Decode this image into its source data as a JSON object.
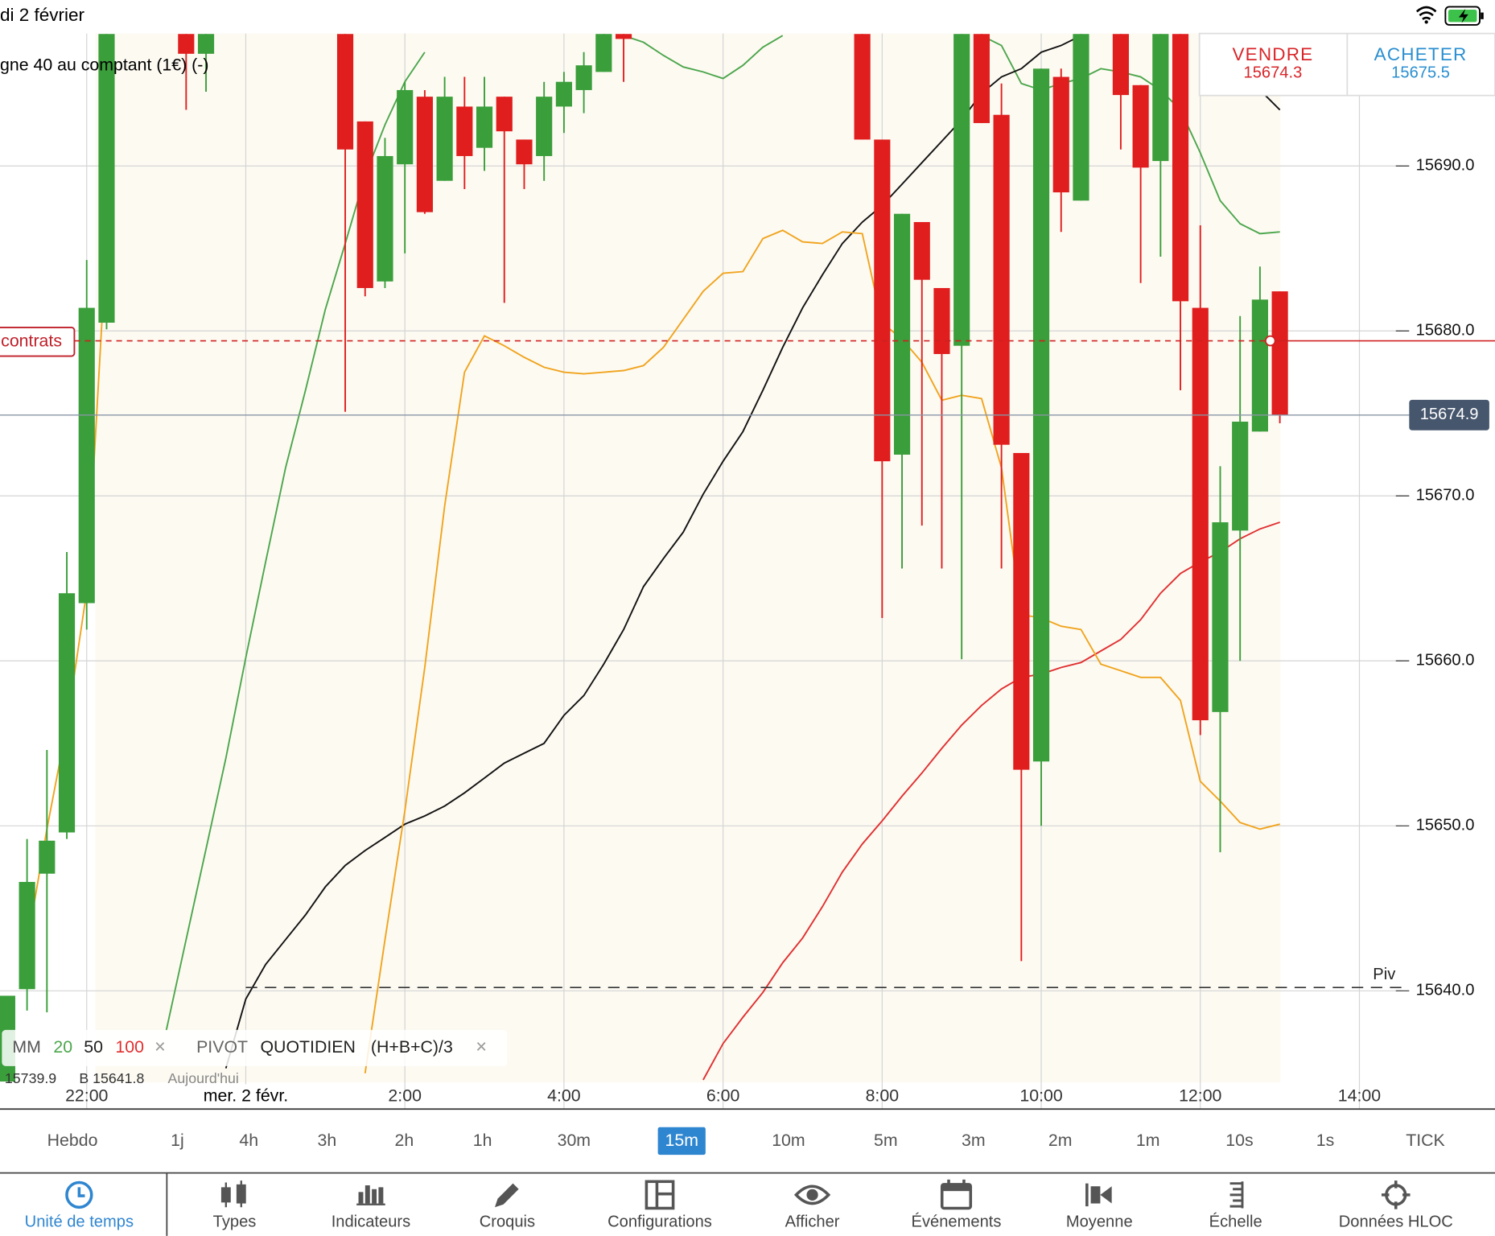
{
  "status_bar": {
    "date": "di 2 février"
  },
  "instrument": "gne 40 au comptant (1€) (-)",
  "quotes": {
    "sell_label": "VENDRE",
    "sell": "15674.3",
    "buy_label": "ACHETER",
    "buy": "15675.5"
  },
  "chart_data": {
    "type": "candlestick",
    "up_color": "#3a9e3a",
    "down_color": "#e01e1e",
    "x": [
      21.0,
      21.25,
      21.5,
      21.75,
      22.0,
      22.25,
      23.25,
      23.5,
      25.25,
      25.5,
      25.75,
      26.0,
      26.25,
      26.5,
      26.75,
      27.0,
      27.25,
      27.5,
      27.75,
      28.0,
      28.25,
      28.5,
      28.75,
      31.75,
      32.0,
      32.25,
      32.5,
      32.75,
      33.0,
      33.25,
      33.5,
      33.75,
      34.0,
      34.25,
      34.5,
      35.0,
      35.25,
      35.5,
      35.75,
      36.0,
      36.25,
      36.5,
      36.75,
      37.0
    ],
    "open": [
      15634.5,
      15640.1,
      15647.1,
      15649.6,
      15663.5,
      15680.5,
      15698.0,
      15696.8,
      15698.0,
      15692.7,
      15683.0,
      15690.1,
      15694.2,
      15689.1,
      15693.6,
      15691.1,
      15694.2,
      15691.6,
      15690.6,
      15693.6,
      15694.6,
      15695.7,
      15698.0,
      15698.0,
      15691.6,
      15672.5,
      15686.6,
      15682.6,
      15679.1,
      15698.0,
      15693.1,
      15672.6,
      15653.9,
      15695.4,
      15687.9,
      15698.0,
      15694.9,
      15690.3,
      15698.0,
      15681.4,
      15656.9,
      15667.9,
      15673.9,
      15682.4
    ],
    "high": [
      15639.7,
      15649.2,
      15654.6,
      15666.6,
      15684.3,
      15698.0,
      15698.0,
      15698.0,
      15698.0,
      15692.7,
      15691.7,
      15695.1,
      15694.6,
      15695.4,
      15695.4,
      15695.4,
      15694.2,
      15691.6,
      15695.1,
      15695.7,
      15696.9,
      15698.0,
      15698.0,
      15698.0,
      15691.6,
      15687.1,
      15686.6,
      15682.6,
      15698.0,
      15698.0,
      15695.0,
      15672.6,
      15695.9,
      15695.9,
      15698.0,
      15698.0,
      15694.9,
      15698.0,
      15698.0,
      15686.4,
      15671.8,
      15680.9,
      15683.9,
      15682.4
    ],
    "low": [
      15634.5,
      15638.8,
      15638.7,
      15649.2,
      15661.9,
      15680.1,
      15693.4,
      15694.5,
      15675.1,
      15682.1,
      15682.6,
      15684.7,
      15687.1,
      15689.1,
      15688.6,
      15689.7,
      15681.7,
      15688.6,
      15689.1,
      15692.0,
      15693.2,
      15695.7,
      15695.1,
      15691.6,
      15662.6,
      15665.6,
      15668.2,
      15665.6,
      15660.1,
      15692.6,
      15665.6,
      15641.8,
      15650.0,
      15686.0,
      15687.9,
      15691.0,
      15682.9,
      15684.5,
      15676.4,
      15655.5,
      15648.4,
      15660.0,
      15673.9,
      15674.4
    ],
    "close": [
      15639.7,
      15646.6,
      15649.1,
      15664.1,
      15681.4,
      15698.0,
      15696.8,
      15698.0,
      15691.0,
      15682.6,
      15690.6,
      15694.6,
      15687.2,
      15694.2,
      15690.6,
      15693.6,
      15692.1,
      15690.1,
      15694.2,
      15695.1,
      15696.1,
      15698.0,
      15697.7,
      15691.6,
      15672.1,
      15687.1,
      15683.1,
      15678.6,
      15698.0,
      15692.6,
      15673.1,
      15653.4,
      15695.9,
      15688.4,
      15698.0,
      15694.3,
      15689.9,
      15698.0,
      15681.8,
      15656.4,
      15668.4,
      15674.5,
      15681.9,
      15674.9
    ],
    "series": [
      {
        "name": "20",
        "color": "#4ca64c",
        "x": [
          23.0,
          23.25,
          23.5,
          23.75,
          24.0,
          24.25,
          24.5,
          24.75,
          25.0,
          25.25,
          25.5,
          25.75,
          26.0,
          26.25,
          26.5,
          28.75,
          29.0,
          29.25,
          29.5,
          29.75,
          30.0,
          30.25,
          30.5,
          30.75,
          31.0,
          33.25,
          33.5,
          33.75,
          34.0,
          34.25,
          34.5,
          34.75,
          35.0,
          35.25,
          35.5,
          35.75,
          36.0,
          36.25,
          36.5,
          36.75,
          37.0
        ],
        "values": [
          15637.6,
          15643.1,
          15648.6,
          15654.1,
          15660.2,
          15666.0,
          15671.7,
          15676.4,
          15681.3,
          15685.3,
          15689.4,
          15692.5,
          15695.1,
          15696.9,
          null,
          15697.9,
          15697.5,
          15696.7,
          15696.0,
          15695.7,
          15695.3,
          15696.1,
          15697.2,
          15697.9,
          null,
          15697.9,
          15697.3,
          15695.0,
          15694.6,
          15695.0,
          15695.3,
          15695.9,
          15695.7,
          15695.4,
          15694.6,
          15693.4,
          15690.8,
          15687.9,
          15686.5,
          15685.9,
          15686.0
        ]
      },
      {
        "name": "50",
        "color": "#111111",
        "x": [
          23.75,
          24.0,
          24.25,
          24.5,
          24.75,
          25.0,
          25.25,
          25.5,
          25.75,
          26.0,
          26.25,
          26.5,
          26.75,
          27.0,
          27.25,
          27.5,
          27.75,
          28.0,
          28.25,
          28.5,
          28.75,
          29.0,
          29.25,
          29.5,
          29.75,
          30.0,
          30.25,
          30.5,
          30.75,
          31.0,
          31.25,
          31.5,
          31.75,
          32.0,
          32.25,
          32.5,
          32.75,
          33.0,
          33.25,
          33.5,
          33.75,
          34.0,
          34.25,
          34.5,
          34.75,
          36.0,
          36.25,
          36.5,
          36.75,
          37.0
        ],
        "values": [
          15635.3,
          15639.5,
          15641.6,
          15643.1,
          15644.6,
          15646.3,
          15647.6,
          15648.5,
          15649.3,
          15650.1,
          15650.6,
          15651.2,
          15652.0,
          15652.9,
          15653.8,
          15654.4,
          15655.0,
          15656.7,
          15657.9,
          15659.8,
          15661.9,
          15664.5,
          15666.2,
          15667.8,
          15670.1,
          15672.1,
          15673.9,
          15676.4,
          15679.0,
          15681.4,
          15683.4,
          15685.3,
          15686.6,
          15687.6,
          15688.9,
          15690.2,
          15691.5,
          15692.8,
          15694.4,
          15695.4,
          15695.9,
          15696.9,
          15697.3,
          15697.9,
          null,
          15696.6,
          15696.0,
          15695.4,
          15694.6,
          15693.4
        ]
      },
      {
        "name": "100",
        "color": "#e03030",
        "x": [
          29.75,
          30.0,
          30.25,
          30.5,
          30.75,
          31.0,
          31.25,
          31.5,
          31.75,
          32.0,
          32.25,
          32.5,
          32.75,
          33.0,
          33.25,
          33.5,
          33.75,
          34.0,
          34.25,
          34.5,
          34.75,
          35.0,
          35.25,
          35.5,
          35.75,
          36.0,
          36.25,
          36.5,
          36.75,
          37.0
        ],
        "values": [
          15634.6,
          15636.8,
          15638.4,
          15639.9,
          15641.7,
          15643.2,
          15645.1,
          15647.2,
          15648.9,
          15650.3,
          15651.8,
          15653.2,
          15654.7,
          15656.1,
          15657.3,
          15658.3,
          15659.0,
          15659.2,
          15659.6,
          15659.9,
          15660.6,
          15661.3,
          15662.5,
          15664.1,
          15665.3,
          15666.0,
          15666.6,
          15667.4,
          15668.0,
          15668.4
        ]
      },
      {
        "color": "#f0a41e",
        "x": [
          21.25,
          21.5,
          21.75,
          22.0,
          22.25,
          22.5,
          25.5,
          25.75,
          26.0,
          26.25,
          26.5,
          26.75,
          27.0,
          27.25,
          27.5,
          27.75,
          28.0,
          28.25,
          28.5,
          28.75,
          29.0,
          29.25,
          29.5,
          29.75,
          30.0,
          30.25,
          30.5,
          30.75,
          31.0,
          31.25,
          31.5,
          31.75,
          32.0,
          32.25,
          32.5,
          32.75,
          33.0,
          33.25,
          33.5,
          33.75,
          34.0,
          34.25,
          34.5,
          34.75,
          35.0,
          35.25,
          35.5,
          35.75,
          36.0,
          36.25,
          36.5,
          36.75,
          37.0
        ],
        "values": [
          15642.8,
          15649.8,
          15656.1,
          15664.2,
          15685.6,
          null,
          15635.0,
          15643.1,
          15650.9,
          15659.6,
          15669.4,
          15677.5,
          15679.7,
          15679.1,
          15678.4,
          15677.8,
          15677.5,
          15677.4,
          15677.5,
          15677.6,
          15677.9,
          15679.0,
          15680.7,
          15682.4,
          15683.5,
          15683.6,
          15685.6,
          15686.1,
          15685.4,
          15685.3,
          15686.0,
          15685.9,
          15680.5,
          15679.5,
          15678.1,
          15675.8,
          15676.1,
          15675.9,
          15671.7,
          15662.8,
          15662.6,
          15662.1,
          15661.9,
          15659.8,
          15659.4,
          15659.0,
          15659.0,
          15657.6,
          15652.7,
          15651.5,
          15650.2,
          15649.8,
          15650.1
        ]
      }
    ],
    "xlim": [
      20.91,
      38.53
    ],
    "xticks": [
      {
        "value": 22,
        "label": "22:00"
      },
      {
        "value": 24,
        "label": "mer. 2 févr."
      },
      {
        "value": 26,
        "label": "2:00"
      },
      {
        "value": 28,
        "label": "4:00"
      },
      {
        "value": 30,
        "label": "6:00"
      },
      {
        "value": 32,
        "label": "8:00"
      },
      {
        "value": 34,
        "label": "10:00"
      },
      {
        "value": 36,
        "label": "12:00"
      },
      {
        "value": 38,
        "label": "14:00"
      }
    ],
    "ylim": [
      15634.45,
      15698.03
    ],
    "yticks": [
      {
        "value": 15640,
        "label": "15640.0"
      },
      {
        "value": 15650,
        "label": "15650.0"
      },
      {
        "value": 15660,
        "label": "15660.0"
      },
      {
        "value": 15670,
        "label": "15670.0"
      },
      {
        "value": 15680,
        "label": "15680.0"
      },
      {
        "value": 15690,
        "label": "15690.0"
      }
    ],
    "grid": true,
    "last_price": 15674.9,
    "order_line": {
      "label": "contrats",
      "value": 15679.4
    },
    "pivot_line": {
      "label": "Piv",
      "value": 15640.2
    }
  },
  "indicators": {
    "ma_label": "MM",
    "close": "×",
    "pivot": [
      "PIVOT",
      "QUOTIDIEN",
      "(H+B+C)/3"
    ],
    "pivot_values": [
      "15739.9",
      "B 15641.8",
      "Aujourd'hui"
    ]
  },
  "timeframes": {
    "items": [
      "Hebdo",
      "1j",
      "4h",
      "3h",
      "2h",
      "1h",
      "30m",
      "15m",
      "10m",
      "5m",
      "3m",
      "2m",
      "1m",
      "10s",
      "1s",
      "TICK"
    ],
    "selected": 7
  },
  "toolbar": {
    "items": [
      "Unité de temps",
      "Types",
      "Indicateurs",
      "Croquis",
      "Configurations",
      "Afficher",
      "Événements",
      "Moyenne",
      "Échelle",
      "Données HLOC"
    ],
    "selected": 0
  }
}
